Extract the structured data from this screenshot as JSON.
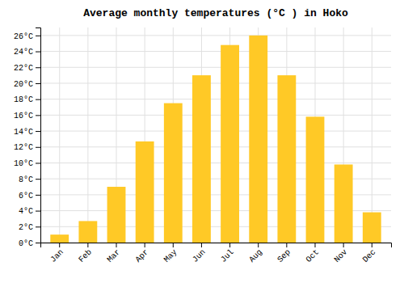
{
  "chart_data": {
    "type": "bar",
    "title": "Average monthly temperatures (°C ) in Hoko",
    "categories": [
      "Jan",
      "Feb",
      "Mar",
      "Apr",
      "May",
      "Jun",
      "Jul",
      "Aug",
      "Sep",
      "Oct",
      "Nov",
      "Dec"
    ],
    "values": [
      1,
      2.7,
      7,
      12.7,
      17.5,
      21,
      24.8,
      26,
      21,
      15.8,
      9.8,
      3.8
    ],
    "color": "#FFC926",
    "ylim": [
      0,
      27
    ],
    "yticks": [
      {
        "value": 0,
        "label": "0°C"
      },
      {
        "value": 2,
        "label": "2°C"
      },
      {
        "value": 4,
        "label": "4°C"
      },
      {
        "value": 6,
        "label": "6°C"
      },
      {
        "value": 8,
        "label": "8°C"
      },
      {
        "value": 10,
        "label": "10°C"
      },
      {
        "value": 12,
        "label": "12°C"
      },
      {
        "value": 14,
        "label": "14°C"
      },
      {
        "value": 16,
        "label": "16°C"
      },
      {
        "value": 18,
        "label": "18°C"
      },
      {
        "value": 20,
        "label": "20°C"
      },
      {
        "value": 22,
        "label": "22°C"
      },
      {
        "value": 24,
        "label": "24°C"
      },
      {
        "value": 26,
        "label": "26°C"
      }
    ],
    "grid": true
  }
}
